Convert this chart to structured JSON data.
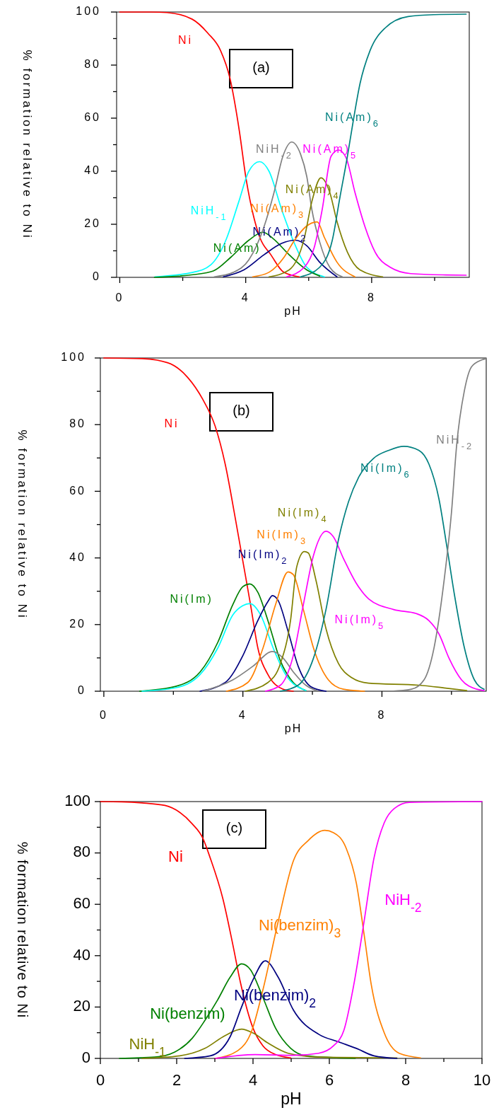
{
  "chart_data": [
    {
      "type": "line",
      "annotations": [
        "(a)"
      ],
      "xlabel": "pH",
      "ylabel": "% formation relative to Ni",
      "xlim": [
        -0.1,
        11.1
      ],
      "ylim": [
        0,
        100
      ],
      "xticks": [
        0,
        {
          "value": 2,
          "label": null
        },
        4,
        {
          "value": 6,
          "label": null
        },
        8,
        {
          "value": 10,
          "label": null
        }
      ],
      "yticks": [
        0,
        {
          "value": 10,
          "label": null
        },
        20,
        {
          "value": 30,
          "label": null
        },
        40,
        {
          "value": 50,
          "label": null
        },
        60,
        {
          "value": 70,
          "label": null
        },
        80,
        {
          "value": 90,
          "label": null
        },
        100
      ],
      "series": [
        {
          "name": "Ni",
          "color": "#ff0000",
          "x": [
            0,
            1,
            1.5,
            2.3,
            2.8,
            3.2,
            3.5,
            3.8,
            4.0,
            4.25,
            4.45,
            4.8,
            5.2,
            5.7
          ],
          "values": [
            100,
            100,
            99.8,
            97.3,
            92,
            85.5,
            75,
            55,
            38,
            23,
            15,
            8.5,
            2,
            0.2
          ]
        },
        {
          "name": "NiH$_{-1}$",
          "color": "#00ffff",
          "x": [
            1.12,
            2.33,
            2.89,
            3.37,
            3.78,
            4.1,
            4.44,
            4.74,
            5.14,
            5.54,
            5.94,
            6.5
          ],
          "values": [
            0.2,
            1.9,
            4.7,
            14,
            28.5,
            40,
            43.6,
            40,
            25.6,
            13,
            3.8,
            0.2
          ]
        },
        {
          "name": "Ni(Am)",
          "color": "#008000",
          "x": [
            1.1,
            2.33,
            2.97,
            3.53,
            4.1,
            4.55,
            4.86,
            5.38,
            5.94,
            6.35
          ],
          "values": [
            0,
            1,
            2.4,
            7.6,
            14,
            17,
            14.7,
            8.5,
            2.8,
            0.5
          ]
        },
        {
          "name": "NiH$_{-2}$",
          "color": "#808080",
          "x": [
            3.0,
            3.61,
            4.1,
            4.58,
            4.9,
            5.18,
            5.46,
            5.74,
            5.94,
            6.1,
            6.35,
            6.67,
            7.07
          ],
          "values": [
            0.2,
            1.9,
            6.6,
            19,
            32,
            45.6,
            51,
            46.5,
            38,
            25.6,
            13.3,
            3.8,
            0.2
          ]
        },
        {
          "name": "Ni(Am)$_{2}$",
          "color": "#000080",
          "x": [
            3.29,
            3.94,
            4.58,
            5.14,
            5.58,
            5.94,
            6.35,
            6.9
          ],
          "values": [
            0.2,
            2.8,
            8.5,
            12.8,
            14,
            11.9,
            5.7,
            0.2
          ]
        },
        {
          "name": "Ni(Am)$_{3}$",
          "color": "#ff8000",
          "x": [
            4.22,
            4.74,
            5.22,
            5.54,
            5.9,
            6.27,
            6.5,
            6.9,
            7.47
          ],
          "values": [
            0.2,
            1.9,
            7.6,
            13.8,
            19,
            20.9,
            15,
            5.7,
            0.2
          ]
        },
        {
          "name": "Ni(Am)$_{4}$",
          "color": "#808000",
          "x": [
            4.74,
            5.38,
            5.86,
            6.1,
            6.39,
            6.67,
            6.9,
            7.23,
            7.63,
            8.35
          ],
          "values": [
            0.2,
            2.8,
            14.7,
            28.5,
            37.5,
            32,
            21,
            9.5,
            2.8,
            0.2
          ]
        },
        {
          "name": "Ni(Am)$_{5}$",
          "color": "#ff00ff",
          "x": [
            5.3,
            5.86,
            6.18,
            6.43,
            6.71,
            6.95,
            7.19,
            7.47,
            7.79,
            8.11,
            8.59,
            9.24,
            10.36,
            11.0
          ],
          "values": [
            0.2,
            3.8,
            11.4,
            25.6,
            45.6,
            48,
            45,
            32,
            19,
            9.5,
            3.8,
            1.4,
            0.9,
            0.8
          ]
        },
        {
          "name": "Ni(Am)$_{6}$",
          "color": "#008080",
          "x": [
            5.74,
            6.35,
            6.75,
            6.99,
            7.23,
            7.43,
            7.63,
            7.95,
            8.43,
            9.16,
            9.96,
            11.0
          ],
          "values": [
            0.2,
            3.8,
            14,
            30,
            45.6,
            60,
            73,
            85.5,
            94,
            98.3,
            99,
            99.2
          ]
        }
      ]
    },
    {
      "type": "line",
      "annotations": [
        "(b)"
      ],
      "xlabel": "pH",
      "ylabel": "% formation relative to Ni",
      "xlim": [
        -0.1,
        11.0
      ],
      "ylim": [
        0,
        100
      ],
      "xticks": [
        0,
        {
          "value": 2,
          "label": null
        },
        4,
        {
          "value": 6,
          "label": null
        },
        8,
        {
          "value": 10,
          "label": null
        }
      ],
      "yticks": [
        0,
        {
          "value": 10,
          "label": null
        },
        20,
        {
          "value": 30,
          "label": null
        },
        40,
        {
          "value": 50,
          "label": null
        },
        60,
        {
          "value": 70,
          "label": null
        },
        80,
        {
          "value": 90,
          "label": null
        },
        100
      ],
      "series": [
        {
          "name": "Ni",
          "color": "#ff0000",
          "x": [
            0,
            1.1,
            1.83,
            2.41,
            2.84,
            3.2,
            3.49,
            3.78,
            4.0,
            4.22,
            4.43,
            4.72,
            5.16,
            5.45
          ],
          "values": [
            100,
            99.8,
            98.6,
            94.2,
            87.7,
            79.6,
            68.2,
            52,
            39,
            26,
            13,
            5,
            0.6,
            0
          ]
        },
        {
          "name": "Ni(Im)",
          "color": "#008000",
          "x": [
            1.03,
            2.05,
            2.77,
            3.28,
            3.71,
            4.0,
            4.2,
            4.43,
            4.72,
            5.08,
            5.45,
            5.81
          ],
          "values": [
            0,
            1.4,
            5.8,
            14.7,
            26,
            31.4,
            32.2,
            29.7,
            21.2,
            9.1,
            2.6,
            0.2
          ]
        },
        {
          "color": "#00ffff",
          "x": [
            1.1,
            2.05,
            2.77,
            3.28,
            3.71,
            4.0,
            4.2,
            4.51,
            4.87,
            5.23,
            5.81
          ],
          "values": [
            0,
            1,
            5,
            13,
            22.9,
            25.7,
            26.3,
            22.9,
            13,
            5,
            0.2
          ]
        },
        {
          "name": "Ni(Im)$_{2}$",
          "color": "#000080",
          "x": [
            2.77,
            3.49,
            4.0,
            4.43,
            4.72,
            4.85,
            5.01,
            5.3,
            5.59,
            5.95,
            6.39
          ],
          "values": [
            0,
            2.6,
            10.7,
            21.2,
            26.9,
            28.7,
            27.3,
            18,
            7.5,
            1.4,
            0
          ]
        },
        {
          "color": "#808080",
          "x": [
            2.84,
            3.71,
            4.29,
            4.85,
            5.16,
            5.45,
            5.81,
            6.17
          ],
          "values": [
            0,
            3.4,
            7.5,
            11.9,
            9.9,
            5.8,
            1.8,
            0
          ]
        },
        {
          "name": "Ni(Im)$_{3}$",
          "color": "#ff8000",
          "x": [
            3.53,
            4.14,
            4.58,
            4.94,
            5.3,
            5.45,
            5.74,
            6.03,
            6.46,
            6.89,
            7.5
          ],
          "values": [
            0,
            2.6,
            13,
            26,
            35.8,
            35,
            24.5,
            13,
            3.4,
            0.6,
            0
          ]
        },
        {
          "name": "Ni(Im)$_{4}$",
          "color": "#808000",
          "x": [
            4.07,
            4.72,
            5.08,
            5.37,
            5.55,
            5.77,
            5.88,
            6.1,
            6.39,
            6.75,
            7.11,
            7.62,
            9.06,
            9.79,
            10.44
          ],
          "values": [
            0,
            2.6,
            8.3,
            21.2,
            37.4,
            41.9,
            41.5,
            33.4,
            18.8,
            8.3,
            4.2,
            2.4,
            1.8,
            1,
            0.2
          ]
        },
        {
          "name": "Ni(Im)$_{5}$",
          "color": "#ff00ff",
          "x": [
            4.65,
            5.08,
            5.45,
            5.74,
            6.03,
            6.39,
            6.6,
            6.89,
            7.25,
            7.62,
            8.34,
            8.99,
            9.35,
            9.64,
            9.93,
            10.29,
            10.73,
            10.94
          ],
          "values": [
            0,
            1.8,
            10.7,
            26,
            40.7,
            48,
            46.4,
            39.9,
            32.6,
            27.7,
            24.5,
            23.3,
            21.2,
            17.2,
            9.9,
            3.4,
            0.6,
            0.2
          ]
        },
        {
          "name": "Ni(Im)$_{6}$",
          "color": "#008080",
          "x": [
            5.08,
            5.59,
            6.03,
            6.39,
            6.75,
            7.04,
            7.33,
            7.76,
            8.2,
            8.63,
            9.06,
            9.35,
            9.64,
            9.86,
            10.08,
            10.37,
            10.66,
            10.94
          ],
          "values": [
            0,
            1.8,
            9.9,
            24.5,
            45.5,
            56.9,
            64.2,
            69.9,
            72.3,
            73.5,
            72.3,
            68.2,
            57.7,
            43.9,
            29.3,
            13.1,
            3.4,
            0.6
          ]
        },
        {
          "name": "NiH$_{-2}$",
          "color": "#808080",
          "x": [
            8.27,
            8.85,
            9.21,
            9.5,
            9.79,
            10.0,
            10.15,
            10.37,
            10.58,
            10.87,
            11.0
          ],
          "values": [
            0,
            0.6,
            3.4,
            13.1,
            33.4,
            53.6,
            73.9,
            90.1,
            97.4,
            99.4,
            99.8
          ]
        }
      ]
    },
    {
      "type": "line",
      "annotations": [
        "(c)"
      ],
      "xlabel": "pH",
      "ylabel": "% formation relative to Ni",
      "xlim": [
        0,
        10
      ],
      "ylim": [
        0,
        100
      ],
      "xticks": [
        0,
        {
          "value": 1,
          "label": null
        },
        2,
        {
          "value": 3,
          "label": null
        },
        4,
        {
          "value": 5,
          "label": null
        },
        6,
        {
          "value": 7,
          "label": null
        },
        8,
        {
          "value": 9,
          "label": null
        },
        10
      ],
      "yticks": [
        0,
        {
          "value": 10,
          "label": null
        },
        20,
        {
          "value": 30,
          "label": null
        },
        40,
        {
          "value": 50,
          "label": null
        },
        60,
        {
          "value": 70,
          "label": null
        },
        80,
        {
          "value": 90,
          "label": null
        },
        100
      ],
      "series": [
        {
          "name": "Ni",
          "color": "#ff0000",
          "x": [
            0,
            0.56,
            1.09,
            1.69,
            2.08,
            2.41,
            2.68,
            2.88,
            3.21,
            3.47,
            3.67,
            4.0,
            4.26,
            4.59,
            4.99
          ],
          "values": [
            100,
            99.9,
            99.5,
            98.5,
            95.8,
            91.3,
            85.9,
            78,
            62.2,
            44.4,
            29.6,
            11.8,
            4.9,
            1.5,
            0.2
          ]
        },
        {
          "name": "Ni(benzim)",
          "color": "#008000",
          "x": [
            0.5,
            1.42,
            1.95,
            2.41,
            2.74,
            3.07,
            3.4,
            3.7,
            3.93,
            4.26,
            4.59,
            4.99,
            5.39,
            6.68
          ],
          "values": [
            0,
            0.5,
            2.5,
            7.9,
            14.8,
            22.7,
            31.6,
            36.8,
            34.6,
            23.7,
            11.8,
            3.9,
            1,
            0
          ]
        },
        {
          "name": "NiH$_{-1}$",
          "color": "#808000",
          "x": [
            1.09,
            2.08,
            2.74,
            3.27,
            3.7,
            4.0,
            4.4,
            4.92,
            5.72,
            7.77
          ],
          "values": [
            0,
            1,
            3.9,
            8.9,
            11.4,
            9.9,
            5.9,
            2,
            0.5,
            0.2
          ]
        },
        {
          "name": "Ni(benzim)$_{2}$",
          "color": "#000080",
          "x": [
            2.21,
            2.88,
            3.4,
            3.7,
            4.0,
            4.32,
            4.66,
            5.06,
            5.72,
            6.25,
            6.71,
            7.17,
            7.77
          ],
          "values": [
            0,
            1,
            8.4,
            20,
            30.6,
            38,
            31.6,
            18.8,
            9.4,
            6.4,
            3.9,
            1,
            0
          ]
        },
        {
          "name": "Ni(benzim)$_{3}$",
          "color": "#ff8000",
          "x": [
            3.01,
            3.6,
            3.97,
            4.26,
            4.66,
            5.06,
            5.45,
            5.88,
            6.11,
            6.44,
            6.71,
            6.91,
            7.1,
            7.44,
            7.83,
            8.39
          ],
          "values": [
            0,
            3,
            10.9,
            26.7,
            53.3,
            77,
            84.9,
            88.8,
            87.9,
            81.9,
            68.1,
            48.4,
            28.6,
            9.9,
            2,
            0.2
          ]
        },
        {
          "name": "NiH$_{-2}$",
          "color": "#ff00ff",
          "x": [
            3.01,
            4.06,
            5.06,
            5.72,
            6.11,
            6.38,
            6.64,
            6.91,
            7.17,
            7.44,
            7.7,
            8.1,
            10
          ],
          "values": [
            0,
            1.5,
            1.2,
            2,
            4.9,
            10.9,
            28.6,
            53.3,
            78,
            91.8,
            97.3,
            99.7,
            100
          ]
        }
      ]
    }
  ]
}
